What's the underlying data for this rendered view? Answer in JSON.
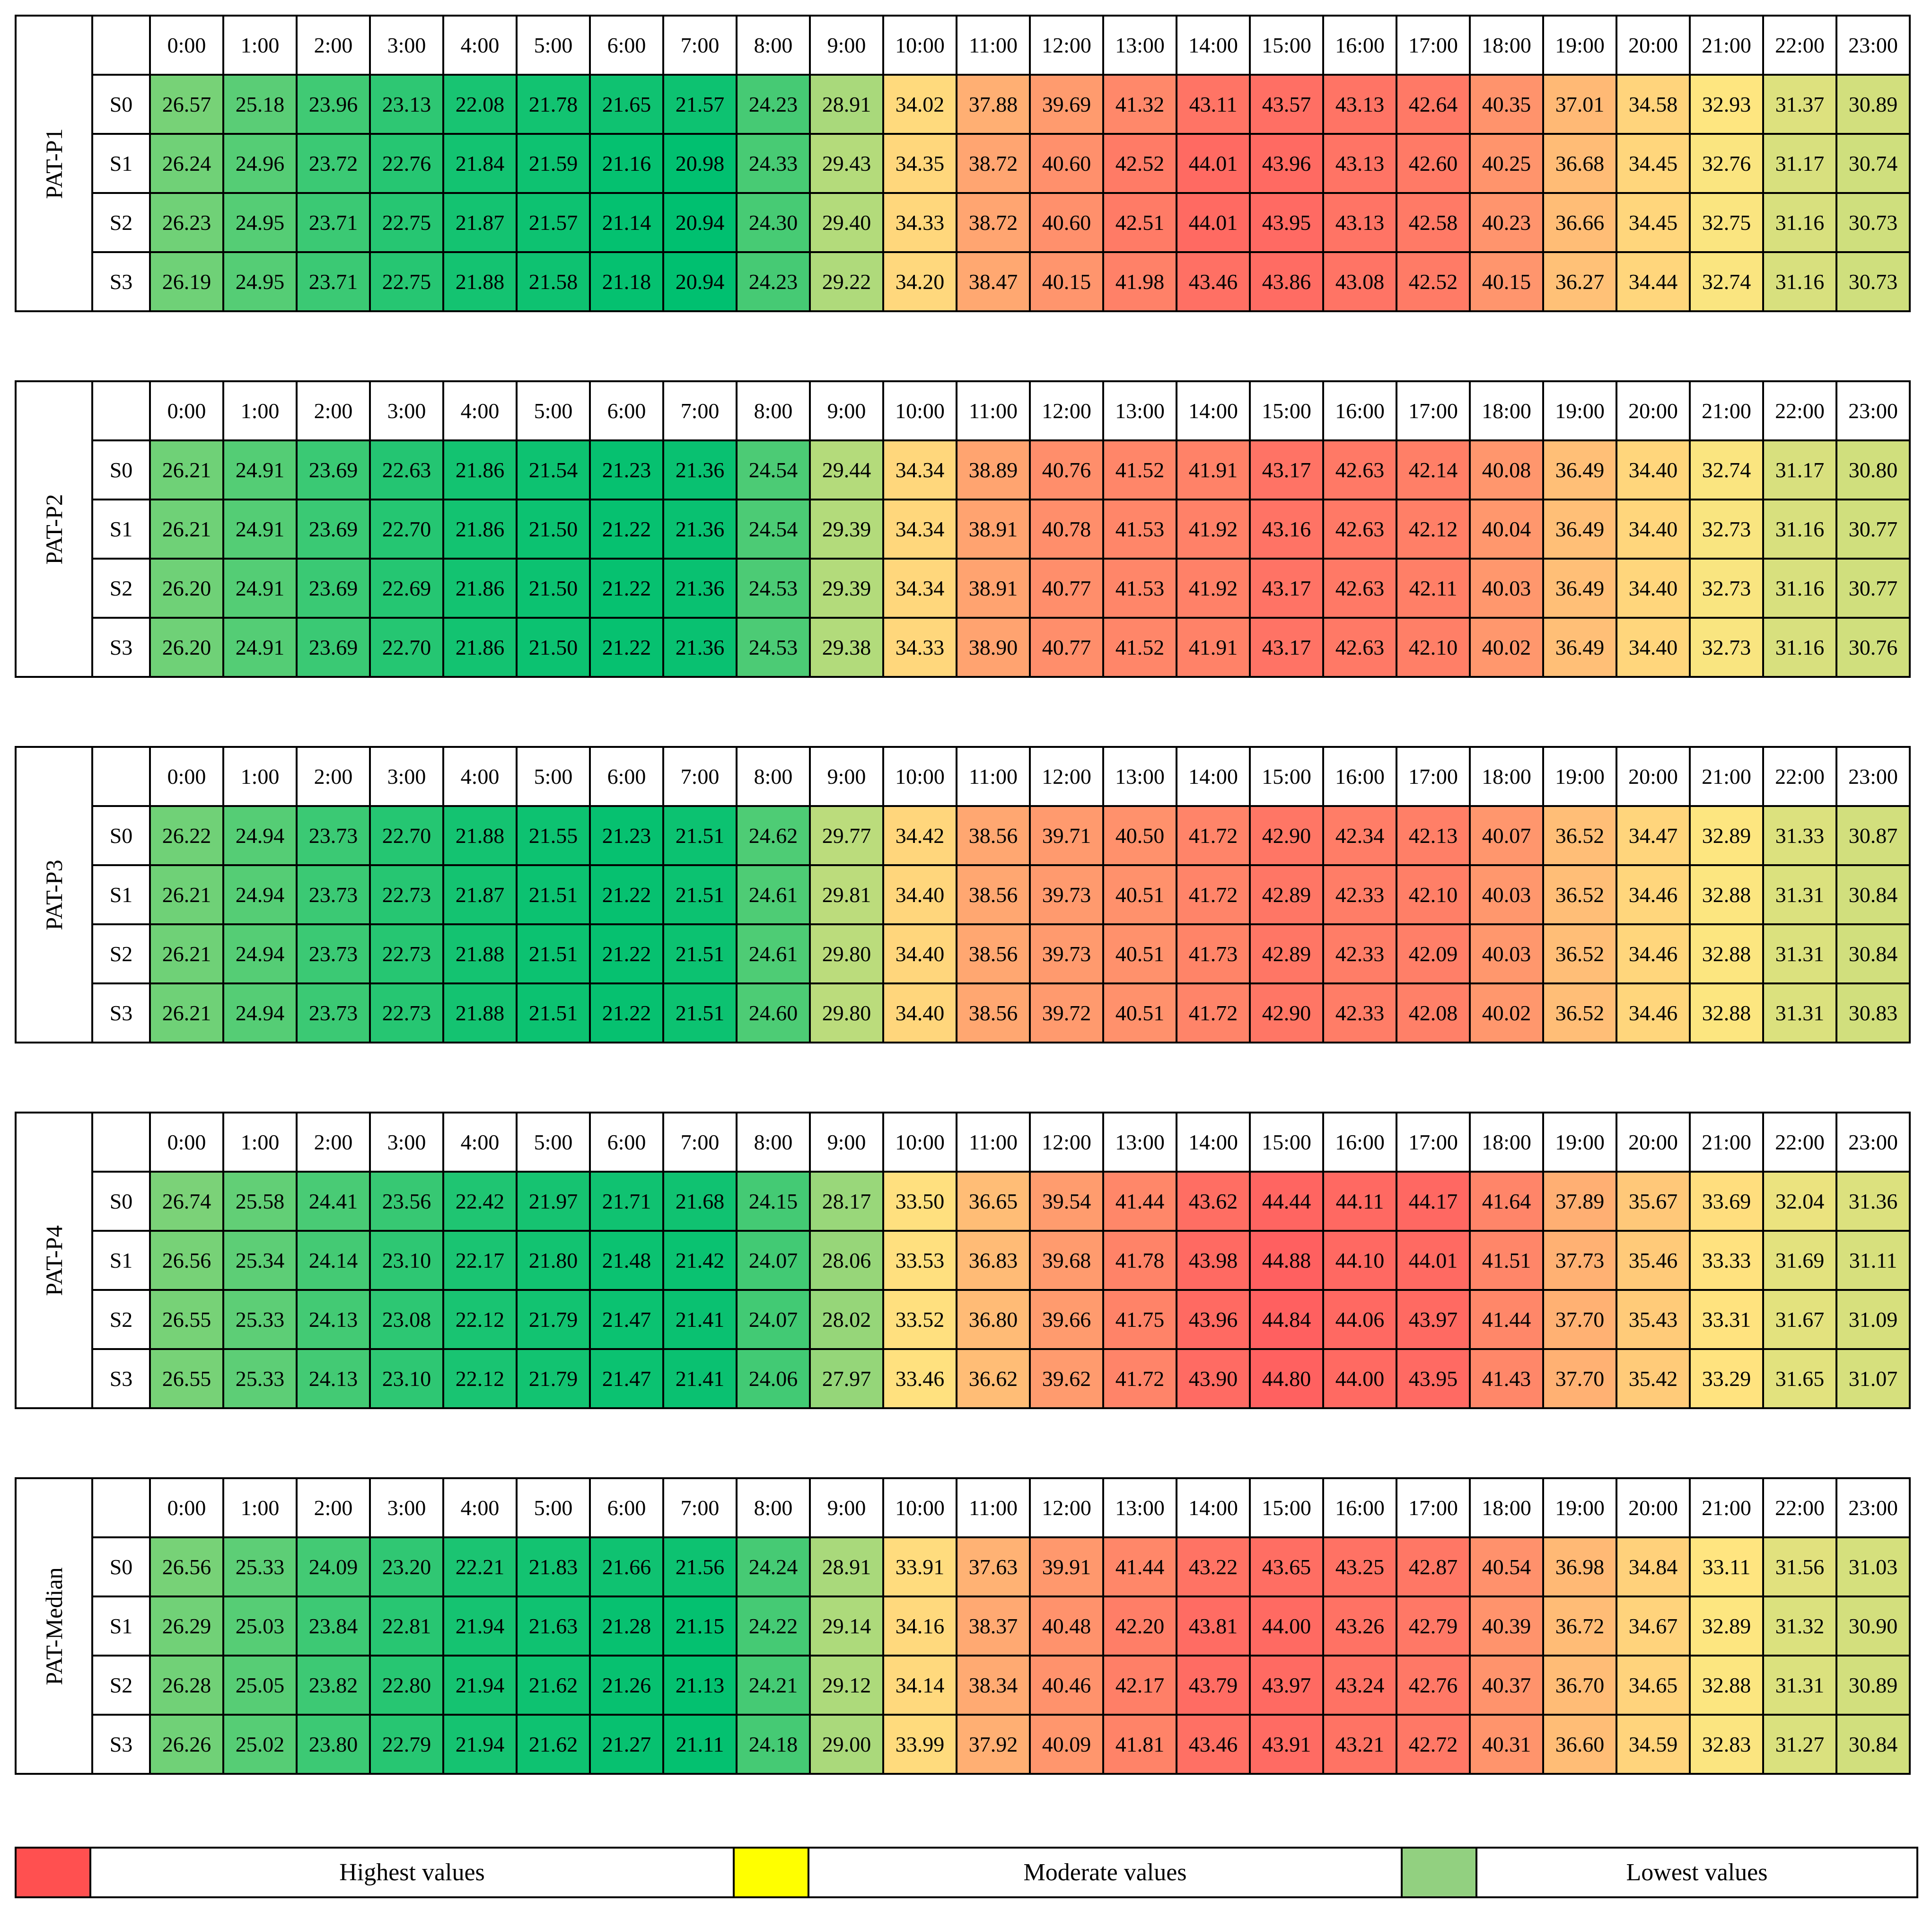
{
  "colors": {
    "low": "#00c070",
    "mid": "#ffe680",
    "high": "#ff6060",
    "legend_high": "#ff5050",
    "legend_moderate": "#ffff00",
    "legend_low": "#92d080"
  },
  "legend": {
    "high_label": "Highest values",
    "moderate_label": "Moderate values",
    "low_label": "Lowest values"
  },
  "chart_data": {
    "type": "heatmap",
    "hours": [
      "0:00",
      "1:00",
      "2:00",
      "3:00",
      "4:00",
      "5:00",
      "6:00",
      "7:00",
      "8:00",
      "9:00",
      "10:00",
      "11:00",
      "12:00",
      "13:00",
      "14:00",
      "15:00",
      "16:00",
      "17:00",
      "18:00",
      "19:00",
      "20:00",
      "21:00",
      "22:00",
      "23:00"
    ],
    "color_scale": {
      "min": 20.94,
      "mid": 33.0,
      "max": 44.88
    },
    "blocks": [
      {
        "name": "PAT-P1",
        "rows": [
          {
            "scenario": "S0",
            "values": [
              "26.57",
              "25.18",
              "23.96",
              "23.13",
              "22.08",
              "21.78",
              "21.65",
              "21.57",
              "24.23",
              "28.91",
              "34.02",
              "37.88",
              "39.69",
              "41.32",
              "43.11",
              "43.57",
              "43.13",
              "42.64",
              "40.35",
              "37.01",
              "34.58",
              "32.93",
              "31.37",
              "30.89"
            ]
          },
          {
            "scenario": "S1",
            "values": [
              "26.24",
              "24.96",
              "23.72",
              "22.76",
              "21.84",
              "21.59",
              "21.16",
              "20.98",
              "24.33",
              "29.43",
              "34.35",
              "38.72",
              "40.60",
              "42.52",
              "44.01",
              "43.96",
              "43.13",
              "42.60",
              "40.25",
              "36.68",
              "34.45",
              "32.76",
              "31.17",
              "30.74"
            ]
          },
          {
            "scenario": "S2",
            "values": [
              "26.23",
              "24.95",
              "23.71",
              "22.75",
              "21.87",
              "21.57",
              "21.14",
              "20.94",
              "24.30",
              "29.40",
              "34.33",
              "38.72",
              "40.60",
              "42.51",
              "44.01",
              "43.95",
              "43.13",
              "42.58",
              "40.23",
              "36.66",
              "34.45",
              "32.75",
              "31.16",
              "30.73"
            ]
          },
          {
            "scenario": "S3",
            "values": [
              "26.19",
              "24.95",
              "23.71",
              "22.75",
              "21.88",
              "21.58",
              "21.18",
              "20.94",
              "24.23",
              "29.22",
              "34.20",
              "38.47",
              "40.15",
              "41.98",
              "43.46",
              "43.86",
              "43.08",
              "42.52",
              "40.15",
              "36.27",
              "34.44",
              "32.74",
              "31.16",
              "30.73"
            ]
          }
        ]
      },
      {
        "name": "PAT-P2",
        "rows": [
          {
            "scenario": "S0",
            "values": [
              "26.21",
              "24.91",
              "23.69",
              "22.63",
              "21.86",
              "21.54",
              "21.23",
              "21.36",
              "24.54",
              "29.44",
              "34.34",
              "38.89",
              "40.76",
              "41.52",
              "41.91",
              "43.17",
              "42.63",
              "42.14",
              "40.08",
              "36.49",
              "34.40",
              "32.74",
              "31.17",
              "30.80"
            ]
          },
          {
            "scenario": "S1",
            "values": [
              "26.21",
              "24.91",
              "23.69",
              "22.70",
              "21.86",
              "21.50",
              "21.22",
              "21.36",
              "24.54",
              "29.39",
              "34.34",
              "38.91",
              "40.78",
              "41.53",
              "41.92",
              "43.16",
              "42.63",
              "42.12",
              "40.04",
              "36.49",
              "34.40",
              "32.73",
              "31.16",
              "30.77"
            ]
          },
          {
            "scenario": "S2",
            "values": [
              "26.20",
              "24.91",
              "23.69",
              "22.69",
              "21.86",
              "21.50",
              "21.22",
              "21.36",
              "24.53",
              "29.39",
              "34.34",
              "38.91",
              "40.77",
              "41.53",
              "41.92",
              "43.17",
              "42.63",
              "42.11",
              "40.03",
              "36.49",
              "34.40",
              "32.73",
              "31.16",
              "30.77"
            ]
          },
          {
            "scenario": "S3",
            "values": [
              "26.20",
              "24.91",
              "23.69",
              "22.70",
              "21.86",
              "21.50",
              "21.22",
              "21.36",
              "24.53",
              "29.38",
              "34.33",
              "38.90",
              "40.77",
              "41.52",
              "41.91",
              "43.17",
              "42.63",
              "42.10",
              "40.02",
              "36.49",
              "34.40",
              "32.73",
              "31.16",
              "30.76"
            ]
          }
        ]
      },
      {
        "name": "PAT-P3",
        "rows": [
          {
            "scenario": "S0",
            "values": [
              "26.22",
              "24.94",
              "23.73",
              "22.70",
              "21.88",
              "21.55",
              "21.23",
              "21.51",
              "24.62",
              "29.77",
              "34.42",
              "38.56",
              "39.71",
              "40.50",
              "41.72",
              "42.90",
              "42.34",
              "42.13",
              "40.07",
              "36.52",
              "34.47",
              "32.89",
              "31.33",
              "30.87"
            ]
          },
          {
            "scenario": "S1",
            "values": [
              "26.21",
              "24.94",
              "23.73",
              "22.73",
              "21.87",
              "21.51",
              "21.22",
              "21.51",
              "24.61",
              "29.81",
              "34.40",
              "38.56",
              "39.73",
              "40.51",
              "41.72",
              "42.89",
              "42.33",
              "42.10",
              "40.03",
              "36.52",
              "34.46",
              "32.88",
              "31.31",
              "30.84"
            ]
          },
          {
            "scenario": "S2",
            "values": [
              "26.21",
              "24.94",
              "23.73",
              "22.73",
              "21.88",
              "21.51",
              "21.22",
              "21.51",
              "24.61",
              "29.80",
              "34.40",
              "38.56",
              "39.73",
              "40.51",
              "41.73",
              "42.89",
              "42.33",
              "42.09",
              "40.03",
              "36.52",
              "34.46",
              "32.88",
              "31.31",
              "30.84"
            ]
          },
          {
            "scenario": "S3",
            "values": [
              "26.21",
              "24.94",
              "23.73",
              "22.73",
              "21.88",
              "21.51",
              "21.22",
              "21.51",
              "24.60",
              "29.80",
              "34.40",
              "38.56",
              "39.72",
              "40.51",
              "41.72",
              "42.90",
              "42.33",
              "42.08",
              "40.02",
              "36.52",
              "34.46",
              "32.88",
              "31.31",
              "30.83"
            ]
          }
        ]
      },
      {
        "name": "PAT-P4",
        "rows": [
          {
            "scenario": "S0",
            "values": [
              "26.74",
              "25.58",
              "24.41",
              "23.56",
              "22.42",
              "21.97",
              "21.71",
              "21.68",
              "24.15",
              "28.17",
              "33.50",
              "36.65",
              "39.54",
              "41.44",
              "43.62",
              "44.44",
              "44.11",
              "44.17",
              "41.64",
              "37.89",
              "35.67",
              "33.69",
              "32.04",
              "31.36"
            ]
          },
          {
            "scenario": "S1",
            "values": [
              "26.56",
              "25.34",
              "24.14",
              "23.10",
              "22.17",
              "21.80",
              "21.48",
              "21.42",
              "24.07",
              "28.06",
              "33.53",
              "36.83",
              "39.68",
              "41.78",
              "43.98",
              "44.88",
              "44.10",
              "44.01",
              "41.51",
              "37.73",
              "35.46",
              "33.33",
              "31.69",
              "31.11"
            ]
          },
          {
            "scenario": "S2",
            "values": [
              "26.55",
              "25.33",
              "24.13",
              "23.08",
              "22.12",
              "21.79",
              "21.47",
              "21.41",
              "24.07",
              "28.02",
              "33.52",
              "36.80",
              "39.66",
              "41.75",
              "43.96",
              "44.84",
              "44.06",
              "43.97",
              "41.44",
              "37.70",
              "35.43",
              "33.31",
              "31.67",
              "31.09"
            ]
          },
          {
            "scenario": "S3",
            "values": [
              "26.55",
              "25.33",
              "24.13",
              "23.10",
              "22.12",
              "21.79",
              "21.47",
              "21.41",
              "24.06",
              "27.97",
              "33.46",
              "36.62",
              "39.62",
              "41.72",
              "43.90",
              "44.80",
              "44.00",
              "43.95",
              "41.43",
              "37.70",
              "35.42",
              "33.29",
              "31.65",
              "31.07"
            ]
          }
        ]
      },
      {
        "name": "PAT-Median",
        "rows": [
          {
            "scenario": "S0",
            "values": [
              "26.56",
              "25.33",
              "24.09",
              "23.20",
              "22.21",
              "21.83",
              "21.66",
              "21.56",
              "24.24",
              "28.91",
              "33.91",
              "37.63",
              "39.91",
              "41.44",
              "43.22",
              "43.65",
              "43.25",
              "42.87",
              "40.54",
              "36.98",
              "34.84",
              "33.11",
              "31.56",
              "31.03"
            ]
          },
          {
            "scenario": "S1",
            "values": [
              "26.29",
              "25.03",
              "23.84",
              "22.81",
              "21.94",
              "21.63",
              "21.28",
              "21.15",
              "24.22",
              "29.14",
              "34.16",
              "38.37",
              "40.48",
              "42.20",
              "43.81",
              "44.00",
              "43.26",
              "42.79",
              "40.39",
              "36.72",
              "34.67",
              "32.89",
              "31.32",
              "30.90"
            ]
          },
          {
            "scenario": "S2",
            "values": [
              "26.28",
              "25.05",
              "23.82",
              "22.80",
              "21.94",
              "21.62",
              "21.26",
              "21.13",
              "24.21",
              "29.12",
              "34.14",
              "38.34",
              "40.46",
              "42.17",
              "43.79",
              "43.97",
              "43.24",
              "42.76",
              "40.37",
              "36.70",
              "34.65",
              "32.88",
              "31.31",
              "30.89"
            ]
          },
          {
            "scenario": "S3",
            "values": [
              "26.26",
              "25.02",
              "23.80",
              "22.79",
              "21.94",
              "21.62",
              "21.27",
              "21.11",
              "24.18",
              "29.00",
              "33.99",
              "37.92",
              "40.09",
              "41.81",
              "43.46",
              "43.91",
              "43.21",
              "42.72",
              "40.31",
              "36.60",
              "34.59",
              "32.83",
              "31.27",
              "30.84"
            ]
          }
        ]
      }
    ]
  }
}
